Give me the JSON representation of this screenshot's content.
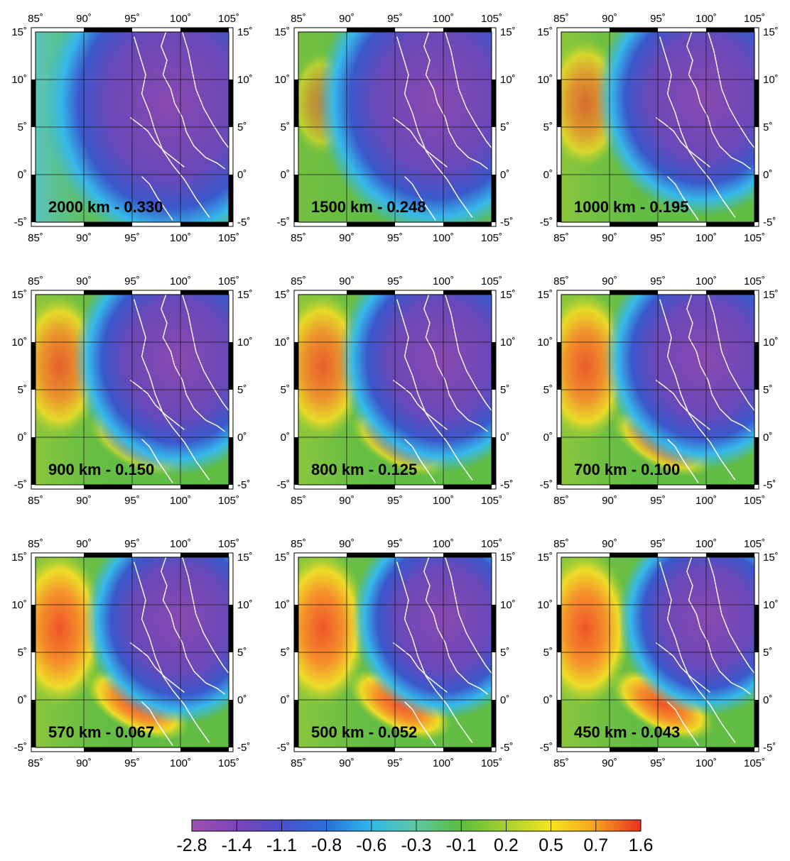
{
  "panels": [
    {
      "label": "2000 km - 0.330",
      "blob": 0.0,
      "deep": 1.0
    },
    {
      "label": "1500 km - 0.248",
      "blob": 0.08,
      "deep": 0.9
    },
    {
      "label": "1000 km - 0.195",
      "blob": 0.55,
      "deep": 0.75
    },
    {
      "label": "900 km - 0.150",
      "blob": 0.8,
      "deep": 0.72
    },
    {
      "label": "800 km - 0.125",
      "blob": 0.85,
      "deep": 0.7
    },
    {
      "label": "700 km - 0.100",
      "blob": 0.9,
      "deep": 0.68
    },
    {
      "label": "570 km - 0.067",
      "blob": 1.0,
      "deep": 0.62
    },
    {
      "label": "500 km - 0.052",
      "blob": 1.0,
      "deep": 0.58
    },
    {
      "label": "450 km - 0.043",
      "blob": 1.0,
      "deep": 0.55
    }
  ],
  "axes": {
    "lon_ticks": [
      "85˚",
      "90˚",
      "95˚",
      "100˚",
      "105˚"
    ],
    "lat_ticks": [
      "15˚",
      "10˚",
      "5˚",
      "0˚",
      "-5˚"
    ],
    "lon_range": [
      85,
      105
    ],
    "lat_range": [
      -5,
      15
    ]
  },
  "colorbar": {
    "labels": [
      "-2.8",
      "-1.4",
      "-1.1",
      "-0.8",
      "-0.6",
      "-0.3",
      "-0.1",
      "0.2",
      "0.5",
      "0.7",
      "1.6"
    ],
    "colors": [
      "#a050b0",
      "#7a45b8",
      "#4a50c8",
      "#2a70d8",
      "#30b8e8",
      "#60c8a0",
      "#5cbc40",
      "#a8d030",
      "#f4e420",
      "#f4a020",
      "#e83020"
    ]
  }
}
